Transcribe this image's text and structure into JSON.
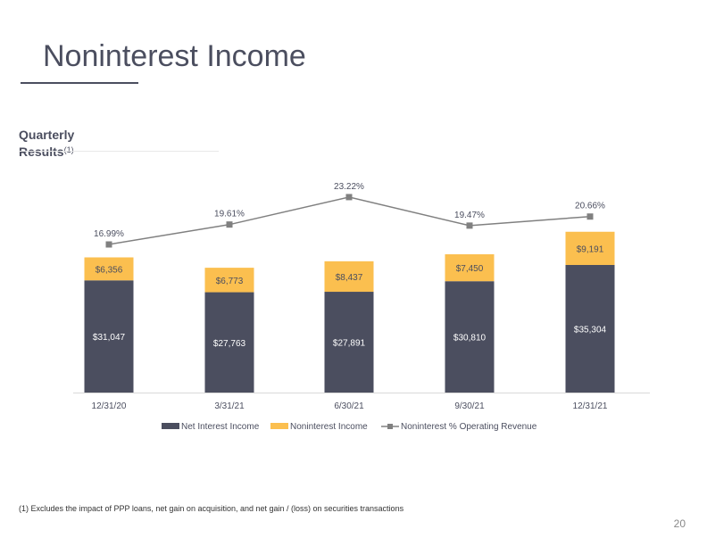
{
  "page": {
    "title": "Noninterest Income",
    "section_title": "Quarterly Results",
    "section_superscript": "(1)",
    "footnote": "(1) Excludes the impact of PPP loans, net gain on acquisition, and net gain / (loss) on securities transactions",
    "page_number": "20"
  },
  "colors": {
    "net_interest": "#4b4e5f",
    "noninterest": "#fbbf4f",
    "line": "#808080",
    "text": "#4b4e5f"
  },
  "chart_data": {
    "type": "bar",
    "stacked": true,
    "categories": [
      "12/31/20",
      "3/31/21",
      "6/30/21",
      "9/30/21",
      "12/31/21"
    ],
    "series": [
      {
        "name": "Net Interest Income",
        "values": [
          31047,
          27763,
          27891,
          30810,
          35304
        ],
        "labels": [
          "$31,047",
          "$27,763",
          "$27,891",
          "$30,810",
          "$35,304"
        ]
      },
      {
        "name": "Noninterest Income",
        "values": [
          6356,
          6773,
          8437,
          7450,
          9191
        ],
        "labels": [
          "$6,356",
          "$6,773",
          "$8,437",
          "$7,450",
          "$9,191"
        ]
      }
    ],
    "line_series": {
      "name": "Noninterest % Operating Revenue",
      "values": [
        16.99,
        19.61,
        23.22,
        19.47,
        20.66
      ],
      "labels": [
        "16.99%",
        "19.61%",
        "23.22%",
        "19.47%",
        "20.66%"
      ]
    },
    "legend": [
      "Net Interest Income",
      "Noninterest Income",
      "Noninterest % Operating Revenue"
    ],
    "legend_position": "bottom",
    "grid": false
  }
}
